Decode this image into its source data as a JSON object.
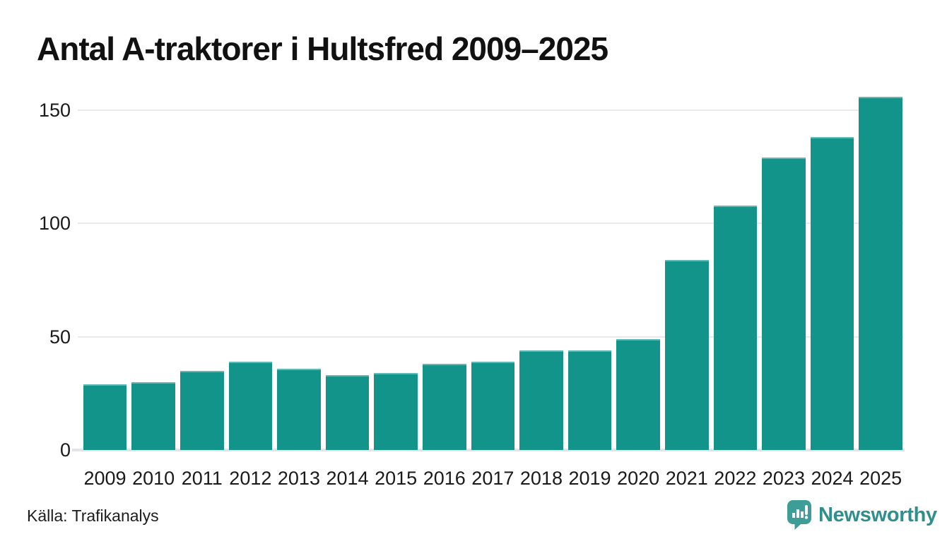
{
  "title": "Antal A-traktorer i Hultsfred 2009–2025",
  "source": "Källa: Trafikanalys",
  "branding": {
    "name": "Newsworthy",
    "icon": "newsworthy-speech-bubble-bar-chart-icon"
  },
  "colors": {
    "bar": "#12948b",
    "gridline": "#e9e9ee",
    "baseline": "#e3e3e9",
    "title_text": "#111111",
    "tick_text": "#1a1a1a",
    "logo_icon": "#3f9d97",
    "logo_text": "#2e8f8b"
  },
  "chart_data": {
    "type": "bar",
    "title": "Antal A-traktorer i Hultsfred 2009–2025",
    "xlabel": "",
    "ylabel": "",
    "categories": [
      "2009",
      "2010",
      "2011",
      "2012",
      "2013",
      "2014",
      "2015",
      "2016",
      "2017",
      "2018",
      "2019",
      "2020",
      "2021",
      "2022",
      "2023",
      "2024",
      "2025"
    ],
    "values": [
      29,
      30,
      35,
      39,
      36,
      33,
      34,
      38,
      39,
      44,
      44,
      49,
      84,
      108,
      129,
      138,
      156
    ],
    "yticks": [
      0,
      50,
      100,
      150
    ],
    "ylim": [
      0,
      160
    ],
    "grid": "horizontal",
    "legend": "none",
    "bar_color": "#12948b"
  }
}
